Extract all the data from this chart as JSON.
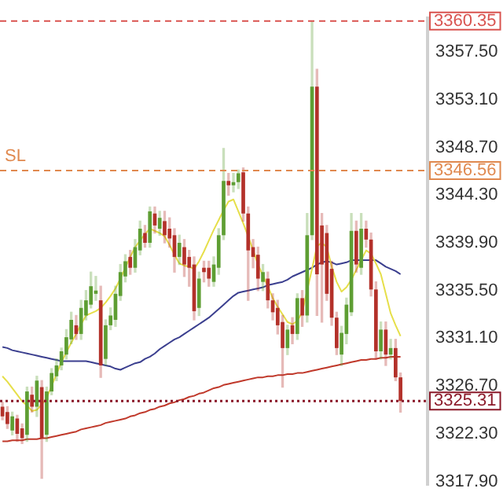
{
  "chart_data": {
    "type": "candlestick",
    "categories": [
      null,
      null,
      null,
      null,
      null,
      null,
      null,
      null,
      null,
      null,
      null,
      null,
      null,
      null,
      null,
      null,
      null,
      null,
      null,
      null,
      null,
      null,
      null,
      null,
      null,
      null,
      null,
      null,
      null,
      null,
      null,
      null,
      null,
      null,
      null,
      null,
      null,
      null,
      null,
      null,
      null,
      null,
      null,
      null,
      null,
      null,
      null,
      null,
      null,
      null,
      null,
      null,
      null,
      null,
      null,
      null,
      null,
      null,
      null,
      null,
      null,
      null,
      null,
      null,
      null,
      null,
      null,
      null,
      null,
      null,
      null,
      null,
      null,
      null,
      null,
      null,
      null,
      null,
      null,
      null,
      null,
      null,
      null,
      null,
      null,
      null,
      null
    ],
    "ohlc": [
      [
        3324.8,
        3325.2,
        3323.6,
        3323.9
      ],
      [
        3324.3,
        3324.8,
        3322.8,
        3323.2
      ],
      [
        3322.6,
        3324.3,
        3322.2,
        3323.9
      ],
      [
        3323.7,
        3324.0,
        3321.6,
        3322.3
      ],
      [
        3322.8,
        3323.2,
        3321.4,
        3321.9
      ],
      [
        3322.2,
        3326.6,
        3321.6,
        3326.2
      ],
      [
        3325.9,
        3326.6,
        3324.3,
        3324.8
      ],
      [
        3324.8,
        3327.6,
        3323.9,
        3327.2
      ],
      [
        3326.6,
        3327.2,
        3318.2,
        3321.9
      ],
      [
        3322.2,
        3326.6,
        3321.6,
        3326.2
      ],
      [
        3326.2,
        3328.3,
        3325.9,
        3327.9
      ],
      [
        3327.6,
        3329.2,
        3327.2,
        3328.6
      ],
      [
        3328.6,
        3330.2,
        3328.2,
        3329.9
      ],
      [
        3329.6,
        3331.9,
        3329.2,
        3331.2
      ],
      [
        3331.0,
        3333.5,
        3330.6,
        3332.8
      ],
      [
        3332.3,
        3333.2,
        3331.0,
        3331.5
      ],
      [
        3331.5,
        3334.6,
        3331.0,
        3333.9
      ],
      [
        3333.2,
        3335.5,
        3332.8,
        3334.6
      ],
      [
        3334.2,
        3337.2,
        3333.9,
        3335.9
      ],
      [
        3335.2,
        3336.8,
        3334.6,
        3335.5
      ],
      [
        3334.6,
        3335.9,
        3327.5,
        3328.6
      ],
      [
        3329.2,
        3332.8,
        3328.6,
        3332.3
      ],
      [
        3332.3,
        3333.9,
        3331.9,
        3333.2
      ],
      [
        3332.8,
        3335.9,
        3332.2,
        3335.2
      ],
      [
        3335.0,
        3337.9,
        3334.6,
        3337.2
      ],
      [
        3336.8,
        3338.8,
        3336.3,
        3338.2
      ],
      [
        3338.6,
        3339.2,
        3337.0,
        3337.6
      ],
      [
        3337.6,
        3340.2,
        3337.2,
        3339.5
      ],
      [
        3339.2,
        3341.9,
        3338.8,
        3341.2
      ],
      [
        3340.8,
        3341.5,
        3339.5,
        3339.9
      ],
      [
        3339.9,
        3343.2,
        3339.5,
        3342.8
      ],
      [
        3342.6,
        3343.2,
        3340.8,
        3341.5
      ],
      [
        3341.2,
        3342.8,
        3340.6,
        3342.2
      ],
      [
        3341.9,
        3342.8,
        3339.9,
        3340.6
      ],
      [
        3341.2,
        3342.2,
        3339.5,
        3340.3
      ],
      [
        3340.6,
        3341.2,
        3337.2,
        3338.6
      ],
      [
        3338.6,
        3340.6,
        3337.9,
        3339.9
      ],
      [
        3339.5,
        3340.2,
        3336.8,
        3337.9
      ],
      [
        3338.6,
        3339.2,
        3335.9,
        3337.6
      ],
      [
        3337.9,
        3338.6,
        3332.8,
        3333.6
      ],
      [
        3333.9,
        3337.2,
        3333.2,
        3336.6
      ],
      [
        3337.6,
        3338.2,
        3336.3,
        3337.2
      ],
      [
        3337.6,
        3338.2,
        3335.9,
        3336.6
      ],
      [
        3336.3,
        3338.6,
        3335.9,
        3337.9
      ],
      [
        3337.6,
        3341.2,
        3337.0,
        3340.6
      ],
      [
        3340.6,
        3348.6,
        3340.2,
        3345.6
      ],
      [
        3345.6,
        3346.3,
        3344.3,
        3345.2
      ],
      [
        3345.2,
        3346.3,
        3344.6,
        3345.5
      ],
      [
        3345.5,
        3346.6,
        3344.9,
        3346.3
      ],
      [
        3346.4,
        3346.8,
        3341.9,
        3342.6
      ],
      [
        3342.6,
        3343.2,
        3334.6,
        3339.2
      ],
      [
        3339.5,
        3340.2,
        3337.6,
        3338.6
      ],
      [
        3338.8,
        3339.5,
        3335.5,
        3336.6
      ],
      [
        3336.3,
        3337.9,
        3335.5,
        3337.2
      ],
      [
        3336.6,
        3337.2,
        3333.9,
        3334.6
      ],
      [
        3334.6,
        3335.2,
        3332.8,
        3333.5
      ],
      [
        3333.9,
        3334.6,
        3331.5,
        3332.3
      ],
      [
        3332.6,
        3333.2,
        3326.6,
        3330.2
      ],
      [
        3330.2,
        3332.3,
        3329.6,
        3331.9
      ],
      [
        3332.3,
        3333.0,
        3330.6,
        3331.5
      ],
      [
        3331.5,
        3335.2,
        3331.0,
        3334.8
      ],
      [
        3334.8,
        3335.5,
        3332.2,
        3333.2
      ],
      [
        3333.2,
        3342.6,
        3332.6,
        3340.6
      ],
      [
        3340.6,
        3360.35,
        3340.2,
        3354.3
      ],
      [
        3354.3,
        3355.9,
        3333.2,
        3337.0
      ],
      [
        3341.5,
        3342.6,
        3332.6,
        3337.9
      ],
      [
        3340.8,
        3341.5,
        3334.6,
        3335.2
      ],
      [
        3337.5,
        3338.2,
        3332.3,
        3333.0
      ],
      [
        3333.0,
        3333.5,
        3329.6,
        3330.2
      ],
      [
        3329.6,
        3332.2,
        3328.6,
        3331.6
      ],
      [
        3331.5,
        3334.8,
        3330.6,
        3334.2
      ],
      [
        3333.5,
        3342.6,
        3333.2,
        3341.0
      ],
      [
        3341.0,
        3341.9,
        3337.2,
        3337.9
      ],
      [
        3337.6,
        3342.6,
        3337.0,
        3341.2
      ],
      [
        3341.2,
        3341.9,
        3339.5,
        3340.2
      ],
      [
        3340.2,
        3340.8,
        3335.0,
        3335.6
      ],
      [
        3335.6,
        3336.3,
        3329.2,
        3329.9
      ],
      [
        3329.9,
        3332.6,
        3329.2,
        3331.9
      ],
      [
        3331.9,
        3332.6,
        3328.6,
        3329.6
      ],
      [
        3329.6,
        3331.0,
        3329.2,
        3330.2
      ],
      [
        3330.2,
        3331.0,
        3327.2,
        3327.5
      ],
      [
        3327.5,
        3327.9,
        3324.3,
        3325.31
      ],
      null,
      null,
      null,
      null,
      null
    ],
    "colors": [
      "#b3312a",
      "#b3312a",
      "#5e9e33",
      "#b3312a",
      "#b3312a",
      "#5e9e33",
      "#b3312a",
      "#5e9e33",
      "#b3312a",
      "#5e9e33",
      "#5e9e33",
      "#5e9e33",
      "#5e9e33",
      "#5e9e33",
      "#5e9e33",
      "#b3312a",
      "#5e9e33",
      "#5e9e33",
      "#5e9e33",
      "#5e9e33",
      "#b3312a",
      "#5e9e33",
      "#5e9e33",
      "#5e9e33",
      "#5e9e33",
      "#5e9e33",
      "#b3312a",
      "#5e9e33",
      "#5e9e33",
      "#b3312a",
      "#5e9e33",
      "#b3312a",
      "#5e9e33",
      "#b3312a",
      "#b3312a",
      "#b3312a",
      "#5e9e33",
      "#b3312a",
      "#b3312a",
      "#b3312a",
      "#5e9e33",
      "#b3312a",
      "#b3312a",
      "#5e9e33",
      "#5e9e33",
      "#5e9e33",
      "#b3312a",
      "#5e9e33",
      "#5e9e33",
      "#b3312a",
      "#b3312a",
      "#b3312a",
      "#b3312a",
      "#5e9e33",
      "#b3312a",
      "#b3312a",
      "#b3312a",
      "#b3312a",
      "#5e9e33",
      "#b3312a",
      "#5e9e33",
      "#b3312a",
      "#5e9e33",
      "#5e9e33",
      "#b3312a",
      "#b3312a",
      "#b3312a",
      "#b3312a",
      "#b3312a",
      "#5e9e33",
      "#5e9e33",
      "#5e9e33",
      "#b3312a",
      "#5e9e33",
      "#b3312a",
      "#b3312a",
      "#b3312a",
      "#5e9e33",
      "#b3312a",
      "#5e9e33",
      "#b3312a",
      "#b3312a",
      null,
      null,
      null,
      null,
      null
    ],
    "series": [
      {
        "type": "line",
        "color": "#e6df4a",
        "values": [
          3327.6,
          3327.1,
          3326.5,
          3325.9,
          3325.3,
          3324.9,
          3324.4,
          3324.5,
          3325.0,
          3325.6,
          3326.7,
          3327.8,
          3328.9,
          3329.8,
          3330.7,
          3331.5,
          3332.4,
          3333.2,
          3333.4,
          3333.6,
          3333.9,
          3334.4,
          3335.0,
          3335.7,
          3336.6,
          3337.6,
          3338.6,
          3339.5,
          3340.1,
          3340.7,
          3341.2,
          3341.0,
          3340.8,
          3340.5,
          3339.7,
          3338.8,
          3338.0,
          3337.8,
          3337.7,
          3337.5,
          3338.2,
          3339.1,
          3340.1,
          3341.1,
          3342.0,
          3342.9,
          3343.7,
          3343.9,
          3342.8,
          3341.7,
          3340.5,
          3339.2,
          3337.9,
          3336.9,
          3335.9,
          3334.8,
          3334.0,
          3333.3,
          3332.6,
          3332.4,
          3332.7,
          3333.5,
          3335.5,
          3337.5,
          3339.6,
          3339.9,
          3339.5,
          3337.7,
          3336.3,
          3335.4,
          3335.8,
          3336.5,
          3337.4,
          3338.3,
          3339.2,
          3338.9,
          3338.0,
          3337.0,
          3335.2,
          3333.4,
          3332.3,
          3331.3,
          null,
          null,
          null,
          null,
          null
        ]
      },
      {
        "type": "line",
        "color": "#3b3f8f",
        "values": [
          3330.3,
          3330.2,
          3330.0,
          3329.9,
          3329.8,
          3329.7,
          3329.6,
          3329.5,
          3329.4,
          3329.3,
          3329.2,
          3329.1,
          3329.0,
          3329.0,
          3329.0,
          3329.0,
          3329.0,
          3329.0,
          3328.9,
          3328.8,
          3328.7,
          3328.6,
          3328.5,
          3328.3,
          3328.2,
          3328.4,
          3328.6,
          3328.8,
          3328.9,
          3329.2,
          3329.4,
          3329.7,
          3330.1,
          3330.4,
          3330.7,
          3331.0,
          3331.2,
          3331.5,
          3331.8,
          3332.1,
          3332.4,
          3332.7,
          3333.0,
          3333.4,
          3333.8,
          3334.2,
          3334.6,
          3335.0,
          3335.3,
          3335.4,
          3335.5,
          3335.6,
          3335.7,
          3335.8,
          3336.0,
          3336.1,
          3336.2,
          3336.3,
          3336.5,
          3336.8,
          3337.0,
          3337.2,
          3337.4,
          3337.6,
          3337.9,
          3338.1,
          3338.2,
          3338.1,
          3337.9,
          3338.0,
          3338.1,
          3338.3,
          3338.3,
          3338.3,
          3338.3,
          3338.3,
          3338.3,
          3338.0,
          3337.7,
          3337.5,
          3337.3,
          3337.0,
          null,
          null,
          null,
          null,
          null
        ]
      },
      {
        "type": "line",
        "color": "#c0392b",
        "values": [
          3321.6,
          3321.6,
          3321.7,
          3321.7,
          3321.7,
          3321.8,
          3321.8,
          3321.8,
          3321.9,
          3321.9,
          3322.0,
          3322.1,
          3322.2,
          3322.3,
          3322.4,
          3322.5,
          3322.7,
          3322.8,
          3322.9,
          3323.0,
          3323.1,
          3323.3,
          3323.4,
          3323.5,
          3323.6,
          3323.7,
          3323.9,
          3324.0,
          3324.2,
          3324.3,
          3324.5,
          3324.6,
          3324.8,
          3324.9,
          3325.1,
          3325.2,
          3325.4,
          3325.5,
          3325.7,
          3325.8,
          3326.0,
          3326.1,
          3326.3,
          3326.5,
          3326.6,
          3326.8,
          3326.9,
          3327.0,
          3327.1,
          3327.2,
          3327.3,
          3327.4,
          3327.5,
          3327.5,
          3327.6,
          3327.6,
          3327.7,
          3327.7,
          3327.8,
          3327.8,
          3327.9,
          3327.9,
          3328.0,
          3328.1,
          3328.2,
          3328.3,
          3328.4,
          3328.5,
          3328.6,
          3328.7,
          3328.8,
          3328.9,
          3329.0,
          3329.1,
          3329.1,
          3329.2,
          3329.2,
          3329.3,
          3329.3,
          3329.4,
          3329.4,
          3329.4,
          null,
          null,
          null,
          null,
          null
        ]
      }
    ],
    "ylim": [
      3317.6,
      3360.6
    ],
    "yticks": [
      {
        "value": 3357.5,
        "label": "3357.50"
      },
      {
        "value": 3353.1,
        "label": "3353.10"
      },
      {
        "value": 3348.7,
        "label": "3348.70"
      },
      {
        "value": 3344.3,
        "label": "3344.30"
      },
      {
        "value": 3339.9,
        "label": "3339.90"
      },
      {
        "value": 3335.5,
        "label": "3335.50"
      },
      {
        "value": 3331.1,
        "label": "3331.10"
      },
      {
        "value": 3326.7,
        "label": "3326.70"
      },
      {
        "value": 3322.3,
        "label": "3322.30"
      },
      {
        "value": 3317.9,
        "label": "3317.90"
      }
    ],
    "tick_labels": "y",
    "grid": false,
    "legend": false,
    "marker": "none",
    "line_style": "solid",
    "ref_lines": [
      {
        "axis": "y",
        "value": 3360.35,
        "label": "3360.35",
        "color": "#d9534f",
        "line_style": "dashed"
      },
      {
        "axis": "y",
        "value": 3346.56,
        "label": "3346.56",
        "color": "#e0894f",
        "line_style": "dashed"
      },
      {
        "axis": "y",
        "value": 3325.31,
        "label": "3325.31",
        "color": "#8b1a2a",
        "line_style": "dotted"
      }
    ],
    "annotations": [
      {
        "text": "SL",
        "y": 3346.56
      }
    ]
  }
}
